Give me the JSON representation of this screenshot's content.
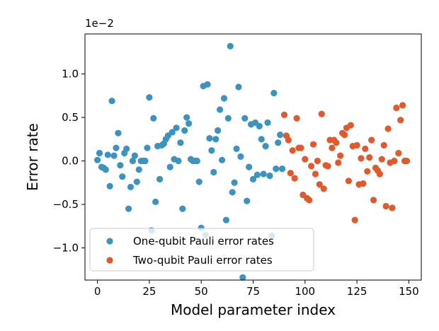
{
  "chart_data": {
    "type": "scatter",
    "xlabel": "Model parameter index",
    "ylabel": "Error rate",
    "offset_text": "1e−2",
    "xlim": [
      -6,
      156
    ],
    "ylim": [
      -1.37,
      1.46
    ],
    "x_ticks": [
      0,
      25,
      50,
      75,
      100,
      125,
      150
    ],
    "x_tick_labels": [
      "0",
      "25",
      "50",
      "75",
      "100",
      "125",
      "150"
    ],
    "y_ticks": [
      -1.0,
      -0.5,
      0.0,
      0.5,
      1.0
    ],
    "y_tick_labels": [
      "−1.0",
      "−0.5",
      "0.0",
      "0.5",
      "1.0"
    ],
    "grid": false,
    "legend_position": "lower-left",
    "series": [
      {
        "name": "One-qubit Pauli error rates",
        "color": "#3c93bf",
        "x": [
          0,
          1,
          2,
          3,
          4,
          5,
          6,
          7,
          8,
          9,
          10,
          11,
          12,
          13,
          14,
          15,
          16,
          17,
          18,
          19,
          20,
          21,
          22,
          23,
          24,
          25,
          26,
          27,
          28,
          29,
          30,
          31,
          32,
          33,
          34,
          35,
          36,
          37,
          38,
          39,
          40,
          41,
          42,
          43,
          44,
          45,
          46,
          47,
          48,
          49,
          50,
          51,
          52,
          53,
          54,
          55,
          56,
          57,
          58,
          59,
          60,
          61,
          62,
          63,
          64,
          65,
          66,
          67,
          68,
          69,
          70,
          71,
          72,
          73,
          74,
          75,
          76,
          77,
          78,
          79,
          80,
          81,
          82,
          83,
          84,
          85,
          86,
          87,
          88,
          89
        ],
        "y": [
          0.01,
          0.09,
          -0.07,
          -0.08,
          -0.1,
          0.07,
          -0.29,
          0.69,
          0.06,
          0.15,
          0.32,
          -0.05,
          -0.18,
          0.09,
          0.14,
          -0.55,
          -0.3,
          0.0,
          0.06,
          -0.24,
          -0.1,
          0.0,
          0.0,
          0.0,
          0.15,
          0.73,
          -0.8,
          0.49,
          -0.47,
          0.17,
          -0.21,
          0.18,
          0.2,
          0.25,
          0.29,
          -0.07,
          0.33,
          0.02,
          0.38,
          0.0,
          0.21,
          -0.55,
          0.35,
          0.5,
          0.43,
          0.02,
          0.0,
          0.0,
          0.0,
          -0.24,
          -0.77,
          0.86,
          -0.85,
          0.88,
          0.26,
          0.12,
          -0.13,
          0.25,
          0.35,
          0.59,
          0.01,
          0.72,
          -0.68,
          0.49,
          1.32,
          -0.36,
          -0.25,
          0.14,
          0.85,
          0.05,
          -1.34,
          0.49,
          -0.46,
          -0.07,
          0.42,
          -0.21,
          0.44,
          -0.16,
          0.4,
          0.25,
          -0.15,
          0.17,
          0.44,
          -0.17,
          -0.86,
          0.78,
          -0.09,
          0.21,
          0.3,
          -0.09
        ]
      },
      {
        "name": "Two-qubit Pauli error rates",
        "color": "#e05a2d",
        "x": [
          90,
          91,
          92,
          93,
          94,
          95,
          96,
          97,
          98,
          99,
          100,
          101,
          102,
          103,
          104,
          105,
          106,
          107,
          108,
          109,
          110,
          111,
          112,
          113,
          114,
          115,
          116,
          117,
          118,
          119,
          120,
          121,
          122,
          123,
          124,
          125,
          126,
          127,
          128,
          129,
          130,
          131,
          132,
          133,
          134,
          135,
          136,
          137,
          138,
          139,
          140,
          141,
          142,
          143,
          144,
          145,
          146,
          147,
          148,
          149
        ],
        "y": [
          0.53,
          0.29,
          0.24,
          -0.14,
          0.12,
          -0.2,
          0.49,
          0.15,
          0.15,
          -0.39,
          0.02,
          -0.43,
          -0.45,
          -0.06,
          0.19,
          -0.15,
          0.0,
          -0.27,
          0.54,
          -0.32,
          -0.05,
          -0.06,
          0.24,
          0.15,
          0.24,
          0.21,
          -0.02,
          0.06,
          0.32,
          0.3,
          0.38,
          -0.23,
          0.41,
          0.17,
          -0.68,
          0.18,
          -0.27,
          0.03,
          -0.26,
          0.14,
          -0.12,
          0.04,
          0.24,
          -0.45,
          -0.08,
          -0.11,
          -0.15,
          0.02,
          0.18,
          -0.52,
          0.37,
          -0.02,
          -0.54,
          0.0,
          0.61,
          0.09,
          0.47,
          0.64,
          0.0,
          0.0
        ]
      }
    ]
  }
}
